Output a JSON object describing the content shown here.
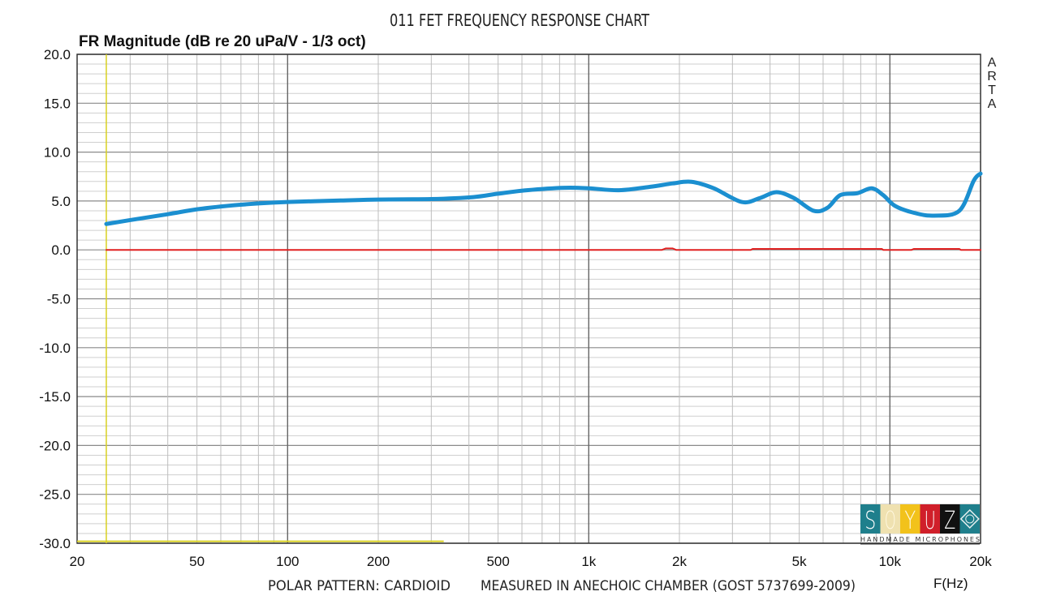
{
  "chart_data": {
    "type": "line",
    "title": "011 FET FREQUENCY RESPONSE CHART",
    "ylabel": "FR Magnitude (dB re 20 uPa/V - 1/3 oct)",
    "xlabel": "F(Hz)",
    "watermark": [
      "A",
      "R",
      "T",
      "A"
    ],
    "footer_left": "POLAR PATTERN: CARDIOID",
    "footer_right": "MEASURED IN ANECHOIC CHAMBER (GOST 5737699-2009)",
    "xscale": "log",
    "xlim": [
      20,
      20000
    ],
    "ylim": [
      -30,
      20
    ],
    "grid": true,
    "x_ticks": [
      20,
      50,
      100,
      200,
      500,
      1000,
      2000,
      5000,
      10000,
      20000
    ],
    "x_tick_labels": [
      "20",
      "50",
      "100",
      "200",
      "500",
      "1k",
      "2k",
      "5k",
      "10k",
      "20k"
    ],
    "y_ticks": [
      20,
      15,
      10,
      5,
      0,
      -5,
      -10,
      -15,
      -20,
      -25,
      -30
    ],
    "y_tick_labels": [
      "20.0",
      "15.0",
      "10.0",
      "5.0",
      "0.0",
      "-5.0",
      "-10.0",
      "-15.0",
      "-20.0",
      "-25.0",
      "-30.0"
    ],
    "series": [
      {
        "name": "FR magnitude",
        "color": "#1b8fd0",
        "x": [
          25,
          30,
          40,
          50,
          63,
          80,
          100,
          150,
          200,
          300,
          413,
          500,
          623,
          830,
          1000,
          1260,
          1600,
          1900,
          2194,
          2600,
          3220,
          3700,
          4200,
          4800,
          5580,
          6200,
          6840,
          7800,
          8700,
          9500,
          10400,
          12000,
          14000,
          17000,
          19000,
          20000
        ],
        "y": [
          2.65,
          3.05,
          3.65,
          4.15,
          4.5,
          4.75,
          4.9,
          5.05,
          5.15,
          5.2,
          5.4,
          5.75,
          6.1,
          6.35,
          6.3,
          6.1,
          6.45,
          6.8,
          6.96,
          6.3,
          4.9,
          5.3,
          5.9,
          5.3,
          4.0,
          4.3,
          5.6,
          5.8,
          6.3,
          5.6,
          4.5,
          3.8,
          3.5,
          4.0,
          7.1,
          7.8
        ]
      },
      {
        "name": "Reference",
        "color": "#e02020",
        "x": [
          25,
          1750,
          1800,
          1900,
          1950,
          3450,
          3500,
          9400,
          9500,
          11800,
          12000,
          17000,
          17200,
          20000
        ],
        "y": [
          0,
          0,
          0.15,
          0.15,
          0,
          0,
          0.1,
          0.1,
          0,
          0,
          0.1,
          0.1,
          0,
          0
        ]
      }
    ],
    "cursor": {
      "x": 25,
      "y": -29.8,
      "color": "#d8d020"
    },
    "logo": {
      "letters": [
        "S",
        "O",
        "Y",
        "U",
        "Z"
      ],
      "tagline": "HANDMADE MICROPHONES",
      "colors": [
        "#1f7f8c",
        "#efe1b0",
        "#f2c21b",
        "#d01f2a",
        "#111111",
        "#1f7f8c"
      ]
    }
  }
}
